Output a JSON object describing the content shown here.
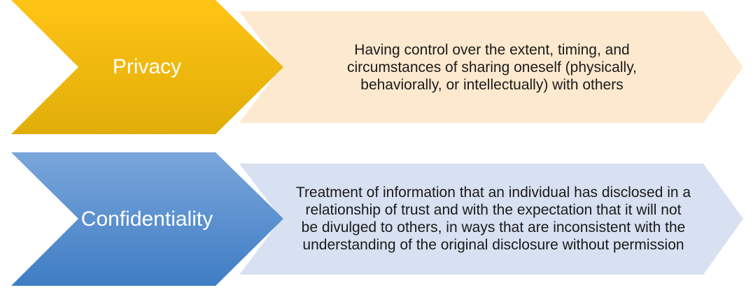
{
  "rows": [
    {
      "term": "Privacy",
      "definition": "Having control over the extent, timing, and circumstances of sharing oneself (physically, behaviorally, or intellectually) with others",
      "colors": {
        "chevron_top": "#FFC415",
        "chevron_bottom": "#E0AD08",
        "callout_fill": "#FDE9CF"
      }
    },
    {
      "term": "Confidentiality",
      "definition": "Treatment of information that an individual has disclosed in a relationship of trust and with the expectation that it will not be divulged to others, in ways that are inconsistent with the understanding of the original disclosure without permission",
      "colors": {
        "chevron_top": "#7AA6DB",
        "chevron_bottom": "#3F7DC4",
        "callout_fill": "#D7E1F1"
      }
    }
  ]
}
